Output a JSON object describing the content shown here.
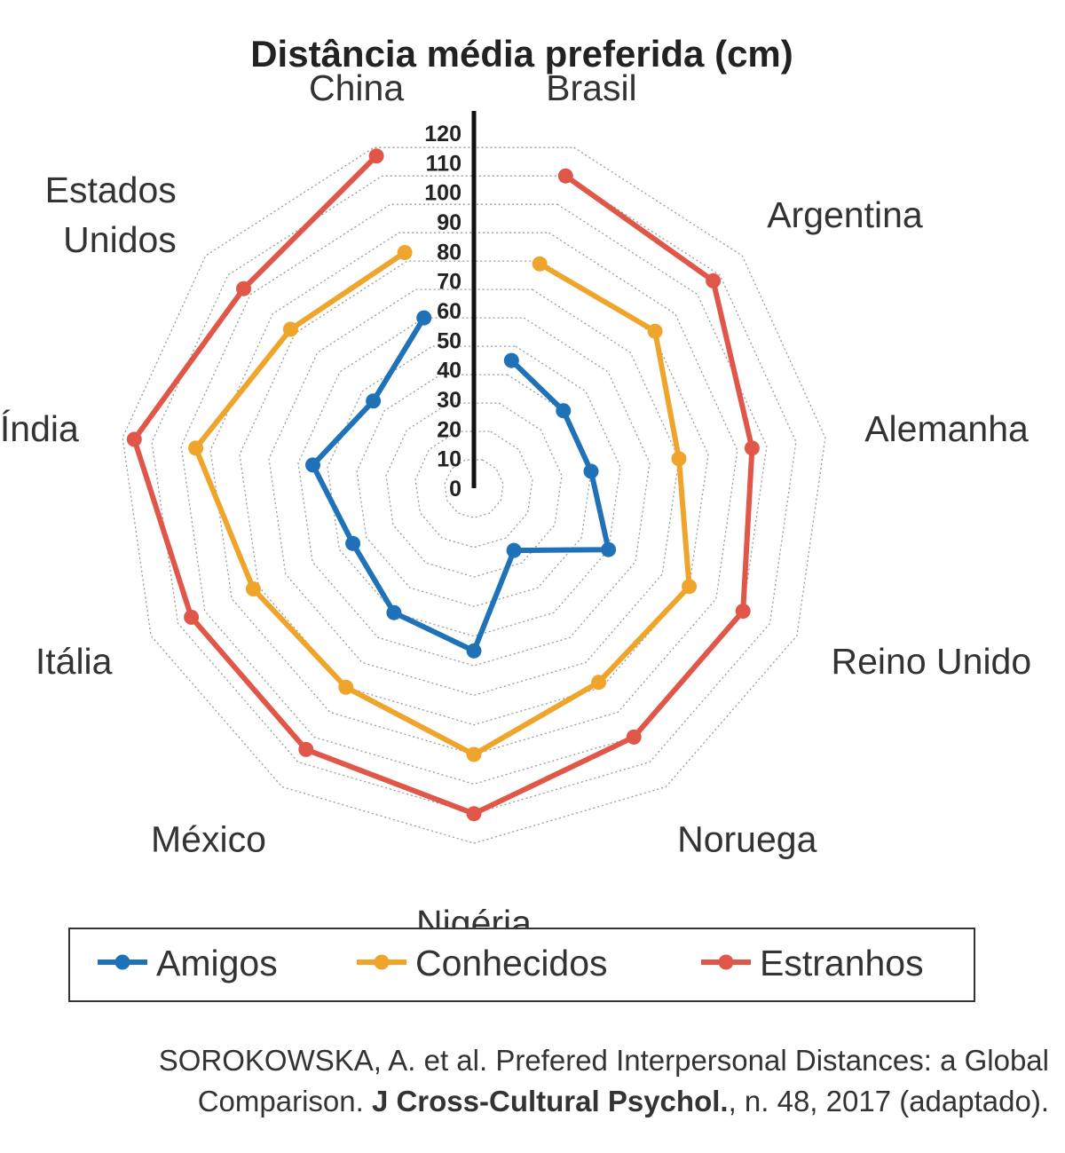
{
  "chart_data": {
    "type": "radar",
    "title": "Distância média preferida (cm)",
    "categories": [
      "Brasil",
      "Argentina",
      "Alemanha",
      "Reino Unido",
      "Noruega",
      "Nigéria",
      "México",
      "Itália",
      "Índia",
      "Estados Unidos",
      "China"
    ],
    "category_lines": [
      [
        "Brasil"
      ],
      [
        "Argentina"
      ],
      [
        "Alemanha"
      ],
      [
        "Reino Unido"
      ],
      [
        "Noruega"
      ],
      [
        "Nigéria"
      ],
      [
        "México"
      ],
      [
        "Itália"
      ],
      [
        "Índia"
      ],
      [
        "Estados",
        "Unidos"
      ],
      [
        "China"
      ]
    ],
    "axis_ticks": [
      "0",
      "10",
      "20",
      "30",
      "40",
      "50",
      "60",
      "70",
      "80",
      "90",
      "100",
      "110",
      "120"
    ],
    "rmax": 120,
    "series": [
      {
        "name": "Amigos",
        "color": "#2072b8",
        "values": [
          45,
          40,
          40,
          50,
          25,
          55,
          50,
          45,
          55,
          45,
          60
        ]
      },
      {
        "name": "Conhecidos",
        "color": "#efa42b",
        "values": [
          79,
          81,
          70,
          80,
          78,
          90,
          80,
          82,
          95,
          82,
          83
        ]
      },
      {
        "name": "Estranhos",
        "color": "#e0574a",
        "values": [
          110,
          107,
          95,
          100,
          100,
          110,
          105,
          105,
          116,
          103,
          117
        ]
      }
    ]
  },
  "citation": {
    "line1": "SOROKOWSKA, A. et al. Prefered Interpersonal Distances: a Global",
    "line2_prefix": "Comparison. ",
    "line2_bold": "J Cross-Cultural Psychol.",
    "line2_suffix": ", n. 48, 2017 (adaptado)."
  },
  "colors": {
    "amigos": "#2072b8",
    "conhecidos": "#efa42b",
    "estranhos": "#e0574a",
    "grid": "#9a9a9a"
  }
}
